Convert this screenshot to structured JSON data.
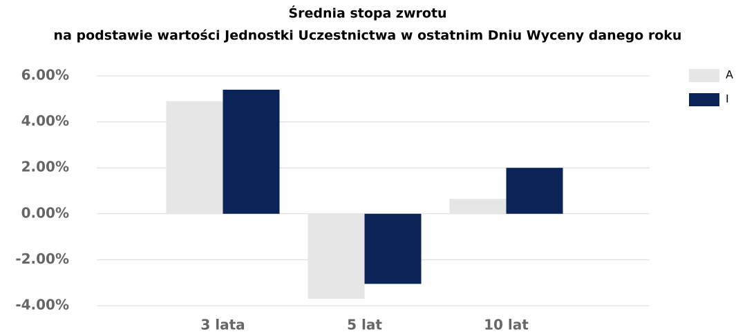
{
  "chart_data": {
    "type": "bar",
    "title": [
      "Średnia stopa zwrotu",
      "na podstawie wartości Jednostki Uczestnictwa w ostatnim Dniu Wyceny danego roku"
    ],
    "categories": [
      "3 lata",
      "5 lat",
      "10 lat"
    ],
    "series": [
      {
        "name": "A",
        "color": "#e6e6e6",
        "values": [
          4.9,
          -3.7,
          0.65
        ]
      },
      {
        "name": "I",
        "color": "#0a2458",
        "values": [
          5.4,
          -3.05,
          2.0
        ]
      }
    ],
    "ylim": [
      -4,
      6
    ],
    "yticks": [
      {
        "value": -4,
        "label": "-4.00%"
      },
      {
        "value": -2,
        "label": "-2.00%"
      },
      {
        "value": 0,
        "label": "0.00%"
      },
      {
        "value": 2,
        "label": "2.00%"
      },
      {
        "value": 4,
        "label": "4.00%"
      },
      {
        "value": 6,
        "label": "6.00%"
      }
    ],
    "grid": true,
    "legend": "right"
  }
}
